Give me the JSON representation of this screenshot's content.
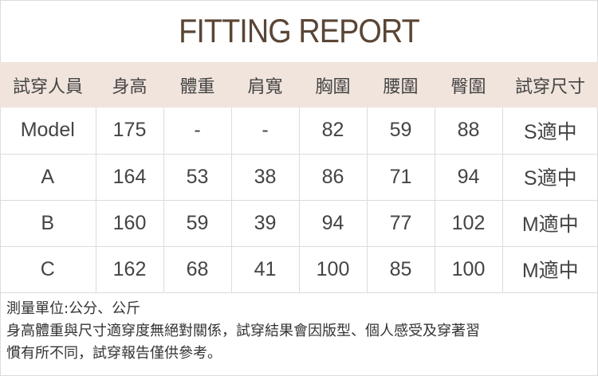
{
  "title": "FITTING REPORT",
  "colors": {
    "title": "#5a4535",
    "header_bg": "#f0e4dc",
    "border": "#dcdcdc"
  },
  "headers": [
    "試穿人員",
    "身高",
    "體重",
    "肩寬",
    "胸圍",
    "腰圍",
    "臀圍",
    "試穿尺寸"
  ],
  "rows": [
    [
      "Model",
      "175",
      "-",
      "-",
      "82",
      "59",
      "88",
      "S適中"
    ],
    [
      "A",
      "164",
      "53",
      "38",
      "86",
      "71",
      "94",
      "S適中"
    ],
    [
      "B",
      "160",
      "59",
      "39",
      "94",
      "77",
      "102",
      "M適中"
    ],
    [
      "C",
      "162",
      "68",
      "41",
      "100",
      "85",
      "100",
      "M適中"
    ]
  ],
  "notes": {
    "unit": "測量單位:公分、公斤",
    "disclaimer_1": "身高體重與尺寸適穿度無絕對關係，試穿結果會因版型、個人感受及穿著習",
    "disclaimer_2": "慣有所不同，試穿報告僅供參考。"
  }
}
